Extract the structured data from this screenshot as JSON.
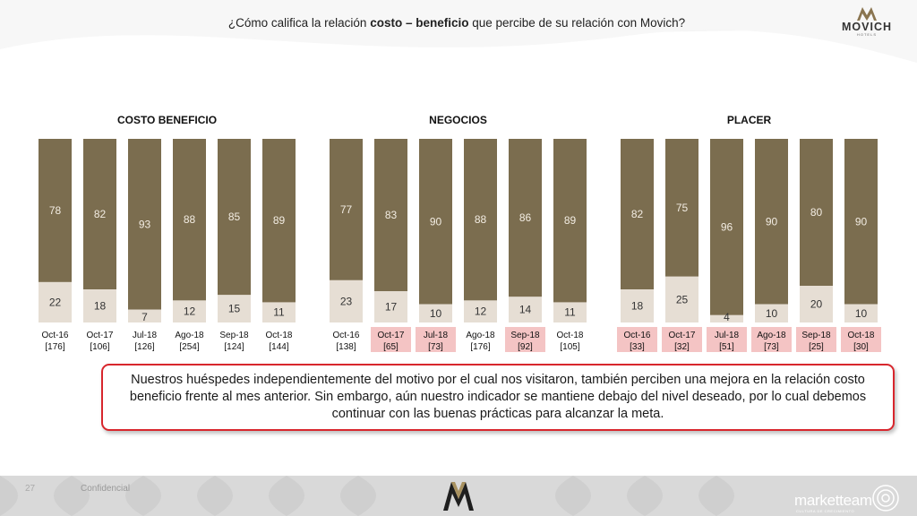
{
  "header": {
    "title_prefix": "¿Cómo califica la relación ",
    "title_bold": "costo – beneficio",
    "title_suffix": " que percibe de su relación con Movich?",
    "brand_logo_word": "MOVICH",
    "brand_logo_sub": "HOTELS"
  },
  "colors": {
    "top": "#7b6d4f",
    "bottom": "#e6ded4",
    "highlight": "#f4c4c4",
    "callout_border": "#d8262d"
  },
  "chart_data": [
    {
      "type": "bar",
      "stacked": true,
      "normalized": true,
      "title": "COSTO BENEFICIO",
      "categories": [
        "Oct-16",
        "Oct-17",
        "Jul-18",
        "Ago-18",
        "Sep-18",
        "Oct-18"
      ],
      "sample_sizes": [
        "[176]",
        "[106]",
        "[126]",
        "[254]",
        "[124]",
        "[144]"
      ],
      "highlighted": [
        false,
        false,
        false,
        false,
        false,
        false
      ],
      "series": [
        {
          "values": [
            78,
            82,
            93,
            88,
            85,
            89
          ]
        },
        {
          "values": [
            22,
            18,
            7,
            12,
            15,
            11
          ]
        }
      ]
    },
    {
      "type": "bar",
      "stacked": true,
      "normalized": true,
      "title": "NEGOCIOS",
      "categories": [
        "Oct-16",
        "Oct-17",
        "Jul-18",
        "Ago-18",
        "Sep-18",
        "Oct-18"
      ],
      "sample_sizes": [
        "[138]",
        "[65]",
        "[73]",
        "[176]",
        "[92]",
        "[105]"
      ],
      "highlighted": [
        false,
        true,
        true,
        false,
        true,
        false
      ],
      "series": [
        {
          "values": [
            77,
            83,
            90,
            88,
            86,
            89
          ]
        },
        {
          "values": [
            23,
            17,
            10,
            12,
            14,
            11
          ]
        }
      ]
    },
    {
      "type": "bar",
      "stacked": true,
      "normalized": true,
      "title": "PLACER",
      "categories": [
        "Oct-16",
        "Oct-17",
        "Jul-18",
        "Ago-18",
        "Sep-18",
        "Oct-18"
      ],
      "sample_sizes": [
        "[33]",
        "[32]",
        "[51]",
        "[73]",
        "[25]",
        "[30]"
      ],
      "highlighted": [
        true,
        true,
        true,
        true,
        true,
        true
      ],
      "series": [
        {
          "values": [
            82,
            75,
            96,
            90,
            80,
            90
          ]
        },
        {
          "values": [
            18,
            25,
            4,
            10,
            20,
            10
          ]
        }
      ]
    }
  ],
  "callout": {
    "text": "Nuestros huéspedes independientemente del motivo por el cual nos visitaron, también perciben una mejora en la relación costo beneficio frente al mes anterior. Sin embargo, aún nuestro indicador se mantiene debajo del nivel deseado, por lo cual debemos continuar con las buenas prácticas para alcanzar la meta."
  },
  "footer": {
    "page_number": "27",
    "confidential": "Confidencial",
    "agency_logo": "marketteam",
    "agency_sub": "CULTURA DE CRECIMIENTO"
  }
}
